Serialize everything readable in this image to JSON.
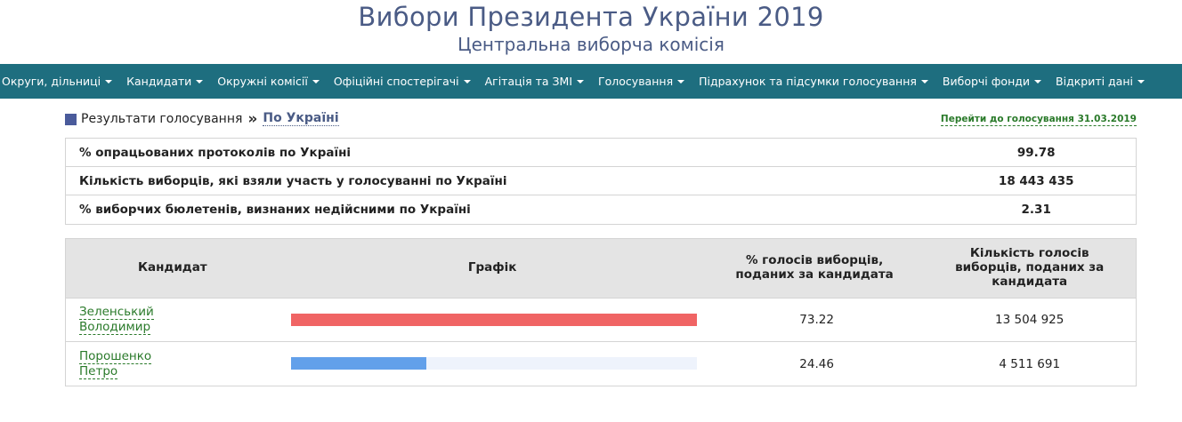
{
  "header": {
    "title": "Вибори Президента України 2019",
    "subtitle": "Центральна виборча комісія"
  },
  "nav": [
    "Округи, дільниці",
    "Кандидати",
    "Окружні комісії",
    "Офіційні спостерігачі",
    "Агітація та ЗМІ",
    "Голосування",
    "Підрахунок та підсумки голосування",
    "Виборчі фонди",
    "Відкриті дані"
  ],
  "breadcrumb": {
    "root": "Результати голосування",
    "separator": "»",
    "current": "По Україні"
  },
  "goto_link": "Перейти до голосування 31.03.2019",
  "summary": [
    {
      "label": "% опрацьованих протоколів по Україні",
      "value": "99.78"
    },
    {
      "label": "Кількість виборців, які взяли участь у голосуванні по Україні",
      "value": "18 443 435"
    },
    {
      "label": "% виборчих бюлетенів, визнаних недійсними по Україні",
      "value": "2.31"
    }
  ],
  "results": {
    "headers": {
      "candidate": "Кандидат",
      "graph": "Графік",
      "percent_line1": "% голосів виборців,",
      "percent_line2": "поданих за кандидата",
      "count_line1": "Кількість голосів",
      "count_line2": "виборців, поданих за",
      "count_line3": "кандидата"
    },
    "rows": [
      {
        "name_line1": "Зеленський",
        "name_line2": "Володимир",
        "percent": "73.22",
        "count": "13 504 925",
        "bar_fraction": 1.0,
        "bar_color": "#f06464"
      },
      {
        "name_line1": "Порошенко",
        "name_line2": "Петро",
        "percent": "24.46",
        "count": "4 511 691",
        "bar_fraction": 0.334,
        "bar_color": "#62a0ea"
      }
    ]
  },
  "colors": {
    "title": "#4a5b85",
    "navbar": "#1e6e7f",
    "link_green": "#2a7a2a",
    "table_header": "#e4e4e4"
  }
}
